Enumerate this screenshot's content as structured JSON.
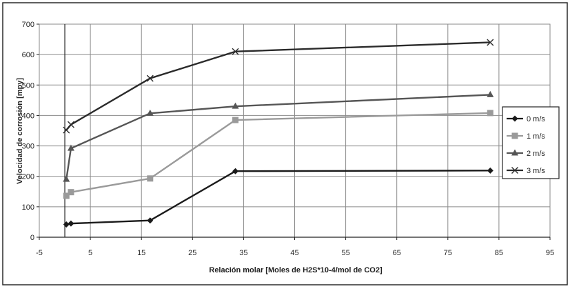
{
  "chart_data": {
    "type": "line",
    "title": "",
    "xlabel": "Relación molar [Moles de H2S*10-4/mol de CO2]",
    "ylabel": "Velocidad de corrosión [mpy]",
    "xlim": [
      -5,
      95
    ],
    "ylim": [
      0,
      700
    ],
    "xticks": [
      -5,
      5,
      15,
      25,
      35,
      45,
      55,
      65,
      75,
      85,
      95
    ],
    "yticks": [
      0,
      100,
      200,
      300,
      400,
      500,
      600,
      700
    ],
    "grid": true,
    "legend_position": "right",
    "series": [
      {
        "name": "0 m/s",
        "marker": "diamond",
        "color": "#1a1a1a",
        "x": [
          0.3,
          1.2,
          16.7,
          33.4,
          83.3
        ],
        "y": [
          42,
          45,
          55,
          217,
          219
        ]
      },
      {
        "name": "1 m/s",
        "marker": "square",
        "color": "#9a9a9a",
        "x": [
          0.3,
          1.2,
          16.7,
          33.4,
          83.3
        ],
        "y": [
          136,
          148,
          193,
          385,
          408
        ]
      },
      {
        "name": "2 m/s",
        "marker": "triangle",
        "color": "#555555",
        "x": [
          0.3,
          1.2,
          16.7,
          33.4,
          83.3
        ],
        "y": [
          190,
          292,
          407,
          430,
          468
        ]
      },
      {
        "name": "3 m/s",
        "marker": "x",
        "color": "#2a2a2a",
        "x": [
          0.3,
          1.2,
          16.7,
          33.4,
          83.3
        ],
        "y": [
          352,
          370,
          522,
          610,
          640
        ]
      }
    ]
  }
}
